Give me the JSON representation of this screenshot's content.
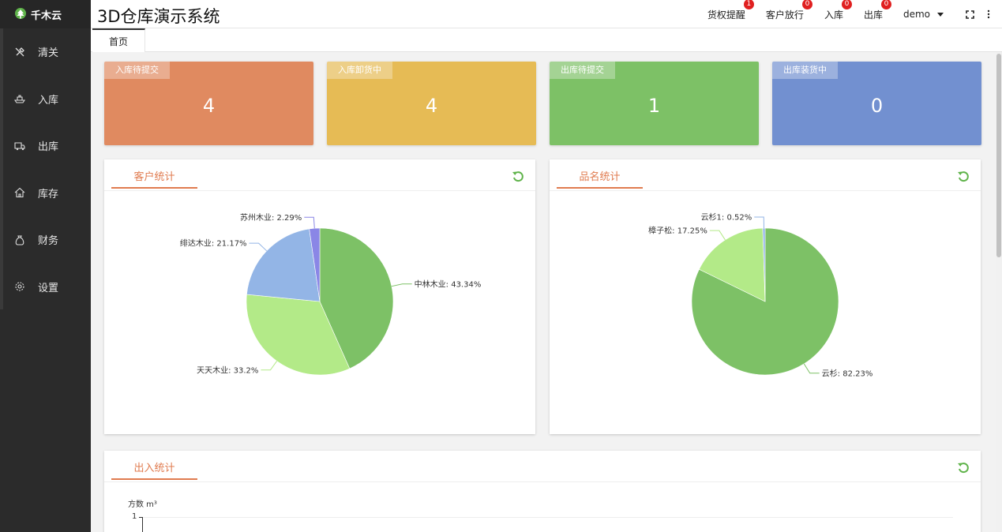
{
  "sidebar": {
    "logo_text": "千木云",
    "items": [
      {
        "label": "清关",
        "icon": "tools-icon"
      },
      {
        "label": "入库",
        "icon": "boat-icon"
      },
      {
        "label": "出库",
        "icon": "truck-icon"
      },
      {
        "label": "库存",
        "icon": "home-icon"
      },
      {
        "label": "财务",
        "icon": "money-bag-icon"
      },
      {
        "label": "设置",
        "icon": "gear-icon"
      }
    ]
  },
  "header": {
    "title": "3D仓库演示系统",
    "nav": [
      {
        "label": "货权提醒",
        "badge": "1"
      },
      {
        "label": "客户放行",
        "badge": "0"
      },
      {
        "label": "入库",
        "badge": "0"
      },
      {
        "label": "出库",
        "badge": "0"
      }
    ],
    "user": "demo"
  },
  "tabs": [
    {
      "label": "首页"
    }
  ],
  "stats": [
    {
      "label": "入库待提交",
      "value": "4",
      "color": "#e08a60"
    },
    {
      "label": "入库卸货中",
      "value": "4",
      "color": "#e6bb55"
    },
    {
      "label": "出库待提交",
      "value": "1",
      "color": "#7dc166"
    },
    {
      "label": "出库装货中",
      "value": "0",
      "color": "#7290d0"
    }
  ],
  "panels": {
    "customer": {
      "title": "客户统计"
    },
    "product": {
      "title": "品名统计"
    },
    "inout": {
      "title": "出入统计",
      "ylabel": "方数 m³",
      "ytick": "1"
    }
  },
  "chart_data": [
    {
      "type": "pie",
      "slices": [
        {
          "name": "中林木业",
          "value": 43.34,
          "label": "中林木业: 43.34%",
          "color": "#7dc166"
        },
        {
          "name": "天天木业",
          "value": 33.2,
          "label": "天天木业: 33.2%",
          "color": "#b3ea88"
        },
        {
          "name": "绯达木业",
          "value": 21.17,
          "label": "绯达木业: 21.17%",
          "color": "#93b5e6"
        },
        {
          "name": "苏州木业",
          "value": 2.29,
          "label": "苏州木业: 2.29%",
          "color": "#8a86e6"
        }
      ]
    },
    {
      "type": "pie",
      "slices": [
        {
          "name": "云杉",
          "value": 82.23,
          "label": "云杉: 82.23%",
          "color": "#7dc166"
        },
        {
          "name": "樟子松",
          "value": 17.25,
          "label": "樟子松: 17.25%",
          "color": "#b3ea88"
        },
        {
          "name": "云杉1",
          "value": 0.52,
          "label": "云杉1: 0.52%",
          "color": "#93b5e6"
        }
      ]
    }
  ]
}
